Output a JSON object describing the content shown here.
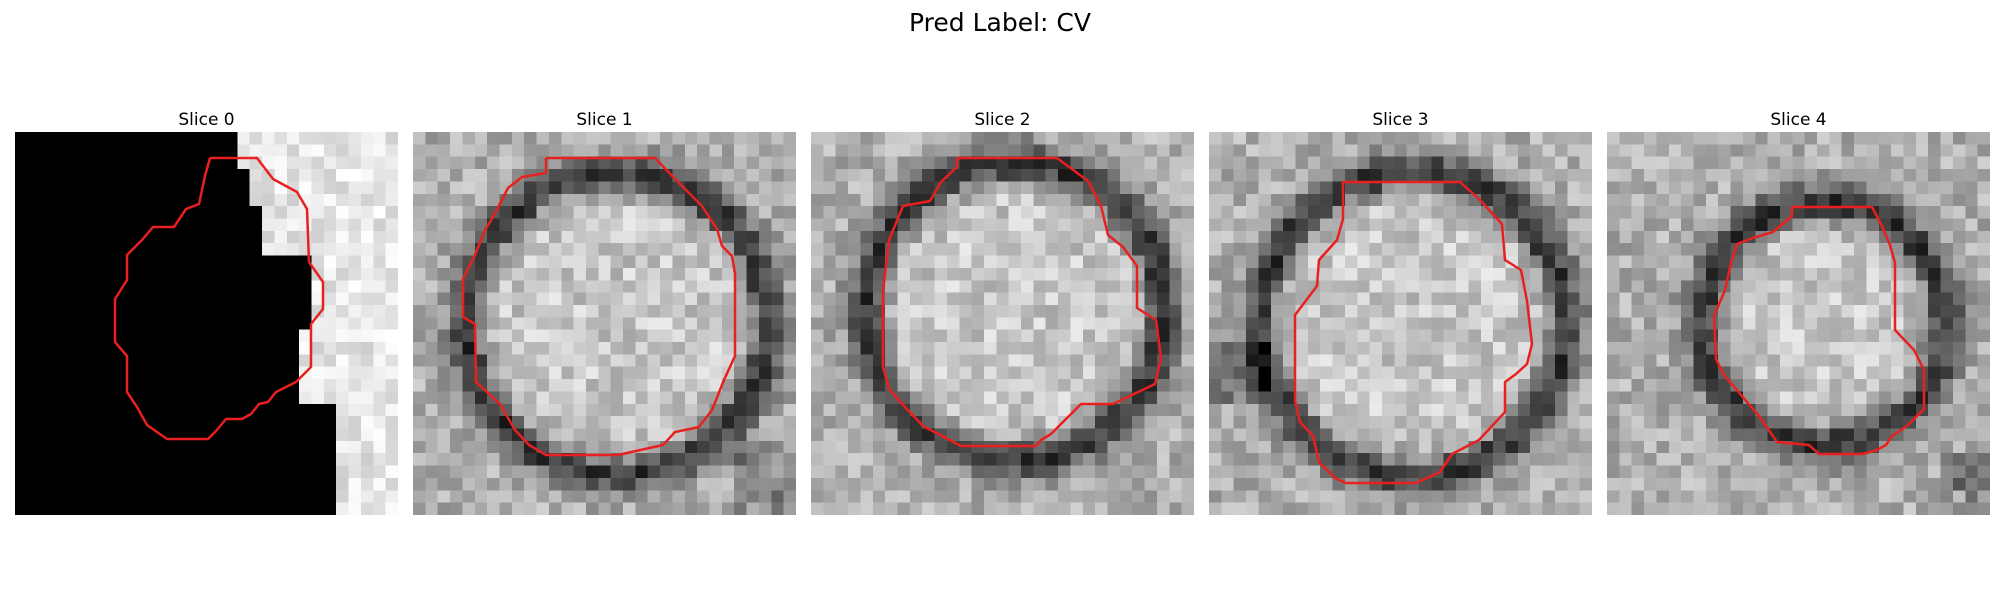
{
  "figure": {
    "title": "Pred Label: CV"
  },
  "panels": [
    {
      "title": "Slice 0"
    },
    {
      "title": "Slice 1"
    },
    {
      "title": "Slice 2"
    },
    {
      "title": "Slice 3"
    },
    {
      "title": "Slice 4"
    }
  ],
  "colors": {
    "contour": "#e8201f",
    "background": "#ffffff"
  },
  "image_grid": {
    "rows": 31,
    "cols": 31
  }
}
